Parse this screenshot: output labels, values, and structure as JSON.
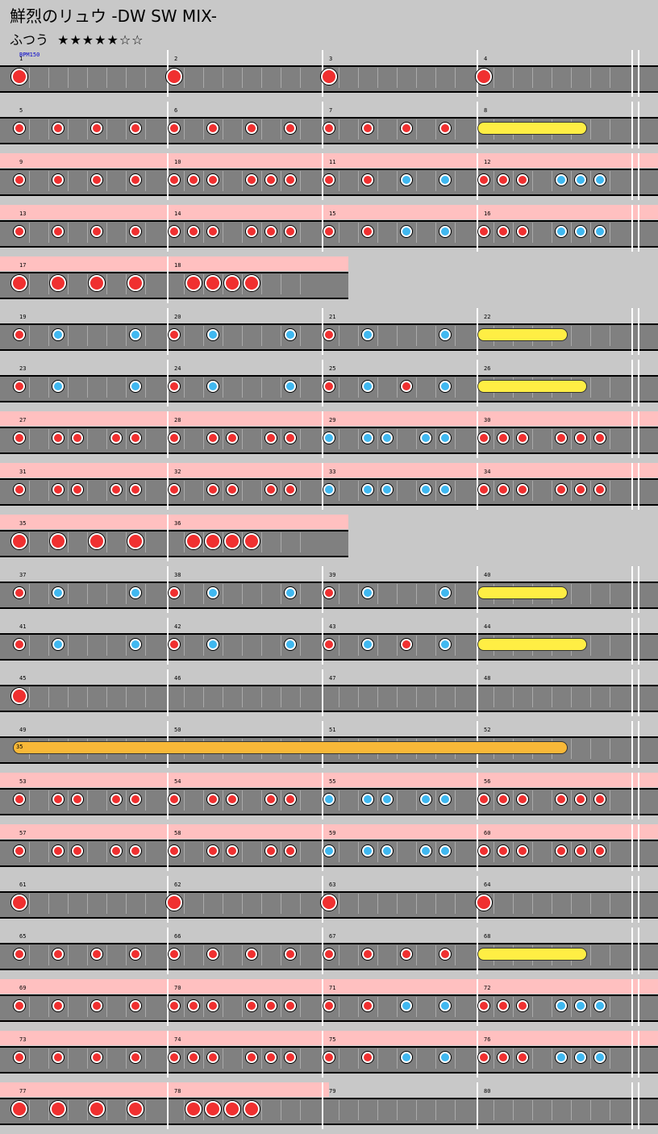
{
  "header": {
    "title": "鮮烈のリュウ -DW SW MIX-",
    "difficulty": "ふつう",
    "stars": "★★★★★☆☆"
  },
  "bpm_label": "BPM150",
  "colors": {
    "don": "#f03030",
    "ka": "#40b8f0",
    "drumroll": "#ffee44",
    "balloon": "#f8b838",
    "gogo_band": "#ffc0c0",
    "lane": "#808080",
    "background": "#c8c8c8"
  },
  "rows": [
    {
      "measures": 4,
      "start": 1,
      "gogo": false,
      "bpm": true,
      "notes": [
        [
          0,
          "D"
        ],
        [
          8,
          "D"
        ],
        [
          16,
          "D"
        ],
        [
          24,
          "D"
        ]
      ]
    },
    {
      "measures": 4,
      "start": 5,
      "gogo": false,
      "notes": [
        [
          0,
          "d"
        ],
        [
          2,
          "d"
        ],
        [
          4,
          "d"
        ],
        [
          6,
          "d"
        ],
        [
          8,
          "d"
        ],
        [
          10,
          "d"
        ],
        [
          12,
          "d"
        ],
        [
          14,
          "d"
        ],
        [
          16,
          "d"
        ],
        [
          18,
          "d"
        ],
        [
          20,
          "d"
        ],
        [
          22,
          "d"
        ]
      ],
      "rolls": [
        [
          24,
          29,
          "yellow"
        ]
      ]
    },
    {
      "measures": 4,
      "start": 9,
      "gogo": true,
      "notes": [
        [
          0,
          "d"
        ],
        [
          2,
          "d"
        ],
        [
          4,
          "d"
        ],
        [
          6,
          "d"
        ],
        [
          8,
          "d"
        ],
        [
          9,
          "d"
        ],
        [
          10,
          "d"
        ],
        [
          12,
          "d"
        ],
        [
          13,
          "d"
        ],
        [
          14,
          "d"
        ],
        [
          16,
          "d"
        ],
        [
          18,
          "d"
        ],
        [
          20,
          "k"
        ],
        [
          22,
          "k"
        ],
        [
          24,
          "d"
        ],
        [
          25,
          "d"
        ],
        [
          26,
          "d"
        ],
        [
          28,
          "k"
        ],
        [
          29,
          "k"
        ],
        [
          30,
          "k"
        ]
      ]
    },
    {
      "measures": 4,
      "start": 13,
      "gogo": true,
      "notes": [
        [
          0,
          "d"
        ],
        [
          2,
          "d"
        ],
        [
          4,
          "d"
        ],
        [
          6,
          "d"
        ],
        [
          8,
          "d"
        ],
        [
          9,
          "d"
        ],
        [
          10,
          "d"
        ],
        [
          12,
          "d"
        ],
        [
          13,
          "d"
        ],
        [
          14,
          "d"
        ],
        [
          16,
          "d"
        ],
        [
          18,
          "d"
        ],
        [
          20,
          "k"
        ],
        [
          22,
          "k"
        ],
        [
          24,
          "d"
        ],
        [
          25,
          "d"
        ],
        [
          26,
          "d"
        ],
        [
          28,
          "k"
        ],
        [
          29,
          "k"
        ],
        [
          30,
          "k"
        ]
      ]
    },
    {
      "measures": 2,
      "start": 17,
      "gogo": true,
      "notes": [
        [
          0,
          "D"
        ],
        [
          2,
          "D"
        ],
        [
          4,
          "D"
        ],
        [
          6,
          "D"
        ],
        [
          9,
          "D"
        ],
        [
          10,
          "D"
        ],
        [
          11,
          "D"
        ],
        [
          12,
          "D"
        ]
      ]
    },
    {
      "measures": 4,
      "start": 19,
      "gogo": false,
      "notes": [
        [
          0,
          "d"
        ],
        [
          2,
          "k"
        ],
        [
          6,
          "k"
        ],
        [
          8,
          "d"
        ],
        [
          10,
          "k"
        ],
        [
          14,
          "k"
        ],
        [
          16,
          "d"
        ],
        [
          18,
          "k"
        ],
        [
          22,
          "k"
        ]
      ],
      "rolls": [
        [
          24,
          28,
          "yellow"
        ]
      ]
    },
    {
      "measures": 4,
      "start": 23,
      "gogo": false,
      "notes": [
        [
          0,
          "d"
        ],
        [
          2,
          "k"
        ],
        [
          6,
          "k"
        ],
        [
          8,
          "d"
        ],
        [
          10,
          "k"
        ],
        [
          14,
          "k"
        ],
        [
          16,
          "d"
        ],
        [
          18,
          "k"
        ],
        [
          20,
          "d"
        ],
        [
          22,
          "k"
        ]
      ],
      "rolls": [
        [
          24,
          29,
          "yellow"
        ]
      ]
    },
    {
      "measures": 4,
      "start": 27,
      "gogo": true,
      "notes": [
        [
          0,
          "d"
        ],
        [
          2,
          "d"
        ],
        [
          3,
          "d"
        ],
        [
          5,
          "d"
        ],
        [
          6,
          "d"
        ],
        [
          8,
          "d"
        ],
        [
          10,
          "d"
        ],
        [
          11,
          "d"
        ],
        [
          13,
          "d"
        ],
        [
          14,
          "d"
        ],
        [
          16,
          "k"
        ],
        [
          18,
          "k"
        ],
        [
          19,
          "k"
        ],
        [
          21,
          "k"
        ],
        [
          22,
          "k"
        ],
        [
          24,
          "d"
        ],
        [
          25,
          "d"
        ],
        [
          26,
          "d"
        ],
        [
          28,
          "d"
        ],
        [
          29,
          "d"
        ],
        [
          30,
          "d"
        ]
      ]
    },
    {
      "measures": 4,
      "start": 31,
      "gogo": true,
      "notes": [
        [
          0,
          "d"
        ],
        [
          2,
          "d"
        ],
        [
          3,
          "d"
        ],
        [
          5,
          "d"
        ],
        [
          6,
          "d"
        ],
        [
          8,
          "d"
        ],
        [
          10,
          "d"
        ],
        [
          11,
          "d"
        ],
        [
          13,
          "d"
        ],
        [
          14,
          "d"
        ],
        [
          16,
          "k"
        ],
        [
          18,
          "k"
        ],
        [
          19,
          "k"
        ],
        [
          21,
          "k"
        ],
        [
          22,
          "k"
        ],
        [
          24,
          "d"
        ],
        [
          25,
          "d"
        ],
        [
          26,
          "d"
        ],
        [
          28,
          "d"
        ],
        [
          29,
          "d"
        ],
        [
          30,
          "d"
        ]
      ]
    },
    {
      "measures": 2,
      "start": 35,
      "gogo": true,
      "notes": [
        [
          0,
          "D"
        ],
        [
          2,
          "D"
        ],
        [
          4,
          "D"
        ],
        [
          6,
          "D"
        ],
        [
          9,
          "D"
        ],
        [
          10,
          "D"
        ],
        [
          11,
          "D"
        ],
        [
          12,
          "D"
        ]
      ]
    },
    {
      "measures": 4,
      "start": 37,
      "gogo": false,
      "notes": [
        [
          0,
          "d"
        ],
        [
          2,
          "k"
        ],
        [
          6,
          "k"
        ],
        [
          8,
          "d"
        ],
        [
          10,
          "k"
        ],
        [
          14,
          "k"
        ],
        [
          16,
          "d"
        ],
        [
          18,
          "k"
        ],
        [
          22,
          "k"
        ]
      ],
      "rolls": [
        [
          24,
          28,
          "yellow"
        ]
      ]
    },
    {
      "measures": 4,
      "start": 41,
      "gogo": false,
      "notes": [
        [
          0,
          "d"
        ],
        [
          2,
          "k"
        ],
        [
          6,
          "k"
        ],
        [
          8,
          "d"
        ],
        [
          10,
          "k"
        ],
        [
          14,
          "k"
        ],
        [
          16,
          "d"
        ],
        [
          18,
          "k"
        ],
        [
          20,
          "d"
        ],
        [
          22,
          "k"
        ]
      ],
      "rolls": [
        [
          24,
          29,
          "yellow"
        ]
      ]
    },
    {
      "measures": 4,
      "start": 45,
      "gogo": false,
      "notes": [
        [
          0,
          "D"
        ]
      ]
    },
    {
      "measures": 4,
      "start": 49,
      "gogo": false,
      "notes": [],
      "rolls": [
        [
          0,
          28,
          "balloon",
          "35"
        ]
      ]
    },
    {
      "measures": 4,
      "start": 53,
      "gogo": true,
      "notes": [
        [
          0,
          "d"
        ],
        [
          2,
          "d"
        ],
        [
          3,
          "d"
        ],
        [
          5,
          "d"
        ],
        [
          6,
          "d"
        ],
        [
          8,
          "d"
        ],
        [
          10,
          "d"
        ],
        [
          11,
          "d"
        ],
        [
          13,
          "d"
        ],
        [
          14,
          "d"
        ],
        [
          16,
          "k"
        ],
        [
          18,
          "k"
        ],
        [
          19,
          "k"
        ],
        [
          21,
          "k"
        ],
        [
          22,
          "k"
        ],
        [
          24,
          "d"
        ],
        [
          25,
          "d"
        ],
        [
          26,
          "d"
        ],
        [
          28,
          "d"
        ],
        [
          29,
          "d"
        ],
        [
          30,
          "d"
        ]
      ]
    },
    {
      "measures": 4,
      "start": 57,
      "gogo": true,
      "notes": [
        [
          0,
          "d"
        ],
        [
          2,
          "d"
        ],
        [
          3,
          "d"
        ],
        [
          5,
          "d"
        ],
        [
          6,
          "d"
        ],
        [
          8,
          "d"
        ],
        [
          10,
          "d"
        ],
        [
          11,
          "d"
        ],
        [
          13,
          "d"
        ],
        [
          14,
          "d"
        ],
        [
          16,
          "k"
        ],
        [
          18,
          "k"
        ],
        [
          19,
          "k"
        ],
        [
          21,
          "k"
        ],
        [
          22,
          "k"
        ],
        [
          24,
          "d"
        ],
        [
          25,
          "d"
        ],
        [
          26,
          "d"
        ],
        [
          28,
          "d"
        ],
        [
          29,
          "d"
        ],
        [
          30,
          "d"
        ]
      ]
    },
    {
      "measures": 4,
      "start": 61,
      "gogo": false,
      "notes": [
        [
          0,
          "D"
        ],
        [
          8,
          "D"
        ],
        [
          16,
          "D"
        ],
        [
          24,
          "D"
        ]
      ]
    },
    {
      "measures": 4,
      "start": 65,
      "gogo": false,
      "notes": [
        [
          0,
          "d"
        ],
        [
          2,
          "d"
        ],
        [
          4,
          "d"
        ],
        [
          6,
          "d"
        ],
        [
          8,
          "d"
        ],
        [
          10,
          "d"
        ],
        [
          12,
          "d"
        ],
        [
          14,
          "d"
        ],
        [
          16,
          "d"
        ],
        [
          18,
          "d"
        ],
        [
          20,
          "d"
        ],
        [
          22,
          "d"
        ]
      ],
      "rolls": [
        [
          24,
          29,
          "yellow"
        ]
      ]
    },
    {
      "measures": 4,
      "start": 69,
      "gogo": true,
      "notes": [
        [
          0,
          "d"
        ],
        [
          2,
          "d"
        ],
        [
          4,
          "d"
        ],
        [
          6,
          "d"
        ],
        [
          8,
          "d"
        ],
        [
          9,
          "d"
        ],
        [
          10,
          "d"
        ],
        [
          12,
          "d"
        ],
        [
          13,
          "d"
        ],
        [
          14,
          "d"
        ],
        [
          16,
          "d"
        ],
        [
          18,
          "d"
        ],
        [
          20,
          "k"
        ],
        [
          22,
          "k"
        ],
        [
          24,
          "d"
        ],
        [
          25,
          "d"
        ],
        [
          26,
          "d"
        ],
        [
          28,
          "k"
        ],
        [
          29,
          "k"
        ],
        [
          30,
          "k"
        ]
      ]
    },
    {
      "measures": 4,
      "start": 73,
      "gogo": true,
      "notes": [
        [
          0,
          "d"
        ],
        [
          2,
          "d"
        ],
        [
          4,
          "d"
        ],
        [
          6,
          "d"
        ],
        [
          8,
          "d"
        ],
        [
          9,
          "d"
        ],
        [
          10,
          "d"
        ],
        [
          12,
          "d"
        ],
        [
          13,
          "d"
        ],
        [
          14,
          "d"
        ],
        [
          16,
          "d"
        ],
        [
          18,
          "d"
        ],
        [
          20,
          "k"
        ],
        [
          22,
          "k"
        ],
        [
          24,
          "d"
        ],
        [
          25,
          "d"
        ],
        [
          26,
          "d"
        ],
        [
          28,
          "k"
        ],
        [
          29,
          "k"
        ],
        [
          30,
          "k"
        ]
      ]
    },
    {
      "measures": 4,
      "start": 77,
      "gogo": true,
      "gogoMeasures": 2,
      "notes": [
        [
          0,
          "D"
        ],
        [
          2,
          "D"
        ],
        [
          4,
          "D"
        ],
        [
          6,
          "D"
        ],
        [
          9,
          "D"
        ],
        [
          10,
          "D"
        ],
        [
          11,
          "D"
        ],
        [
          12,
          "D"
        ]
      ]
    }
  ]
}
